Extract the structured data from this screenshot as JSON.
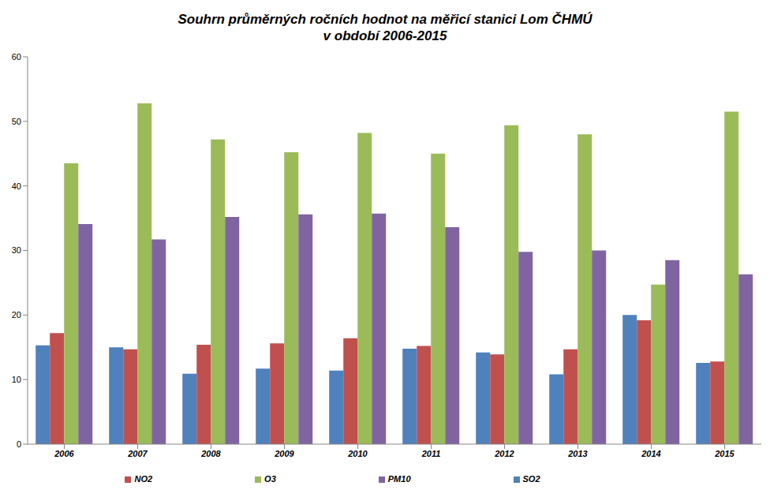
{
  "chart_data": {
    "type": "bar",
    "title": "Souhrn průměrných ročních hodnot na měřicí stanici Lom ČHMÚ\nv období 2006-2015",
    "categories": [
      "2006",
      "2007",
      "2008",
      "2009",
      "2010",
      "2011",
      "2012",
      "2013",
      "2014",
      "2015"
    ],
    "series": [
      {
        "name": "SO2",
        "color": "#4f81bd",
        "values": [
          15.3,
          15.0,
          10.9,
          11.7,
          11.4,
          14.8,
          14.2,
          10.8,
          20.0,
          12.6
        ]
      },
      {
        "name": "NO2",
        "color": "#c0504d",
        "values": [
          17.2,
          14.7,
          15.4,
          15.6,
          16.4,
          15.2,
          13.9,
          14.7,
          19.2,
          12.8
        ]
      },
      {
        "name": "O3",
        "color": "#9bbb59",
        "values": [
          43.5,
          52.8,
          47.2,
          45.2,
          48.2,
          45.0,
          49.4,
          48.0,
          24.7,
          51.5
        ]
      },
      {
        "name": "PM10",
        "color": "#8064a2",
        "values": [
          34.1,
          31.7,
          35.2,
          35.6,
          35.7,
          33.6,
          29.8,
          30.0,
          28.5,
          26.3
        ]
      }
    ],
    "ylim": [
      0,
      60
    ],
    "yticks": [
      0,
      10,
      20,
      30,
      40,
      50,
      60
    ],
    "grid": false,
    "legend": "bottom"
  }
}
